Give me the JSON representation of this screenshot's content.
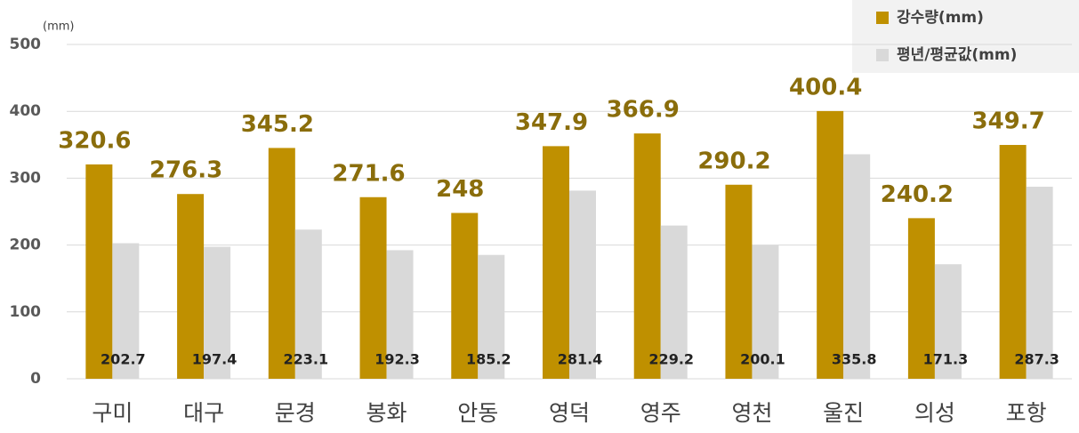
{
  "chart_data": {
    "type": "bar",
    "y_axis_label": "(mm)",
    "categories": [
      "구미",
      "대구",
      "문경",
      "봉화",
      "안동",
      "영덕",
      "영주",
      "영천",
      "울진",
      "의성",
      "포항"
    ],
    "series": [
      {
        "name": "강수량(mm)",
        "color": "#bf9000",
        "values": [
          320.6,
          276.3,
          345.2,
          271.6,
          248,
          347.9,
          366.9,
          290.2,
          400.4,
          240.2,
          349.7
        ]
      },
      {
        "name": "평년/평균값(mm)",
        "color": "#d9d9d9",
        "values": [
          202.7,
          197.4,
          223.1,
          192.3,
          185.2,
          281.4,
          229.2,
          200.1,
          335.8,
          171.3,
          287.3
        ]
      }
    ],
    "ylim": [
      0,
      500
    ],
    "yticks": [
      0,
      100,
      200,
      300,
      400,
      500
    ],
    "grid": true,
    "legend": "top-right"
  }
}
